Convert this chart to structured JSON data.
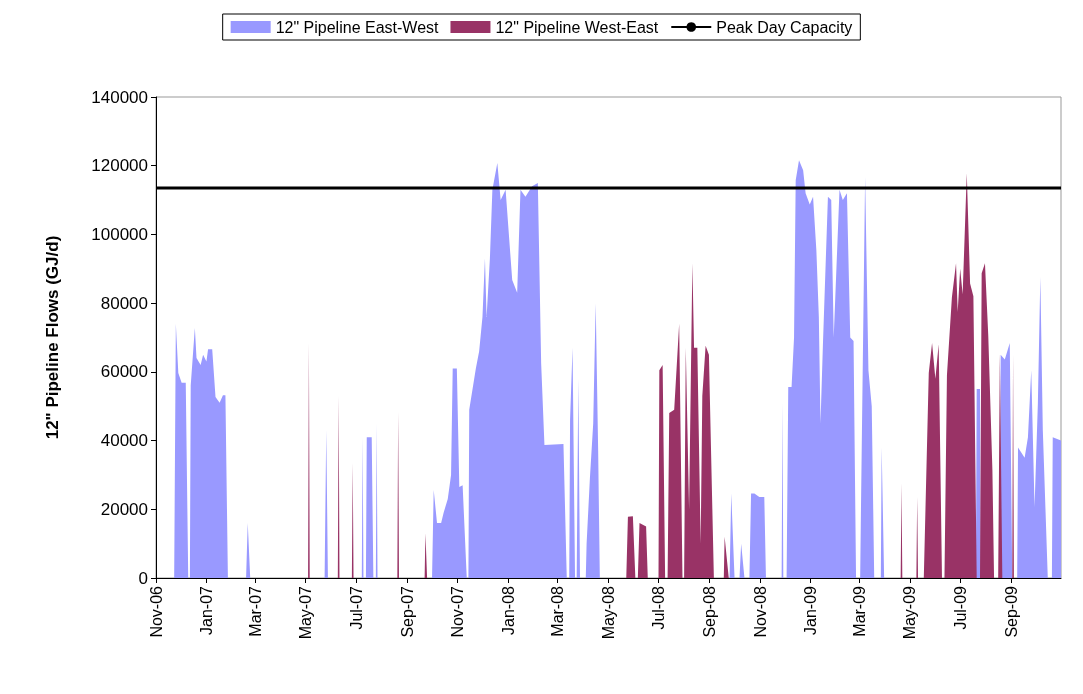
{
  "chart_data": {
    "type": "area",
    "ylabel": "12\" Pipeline Flows (GJ/d)",
    "legend": "top",
    "grid": false,
    "marker": "none",
    "xlim": [
      "2006-11-01",
      "2009-10-31"
    ],
    "xticks": [
      {
        "value": "2006-11-01",
        "label": "Nov-06"
      },
      {
        "value": "2007-01-01",
        "label": "Jan-07"
      },
      {
        "value": "2007-03-01",
        "label": "Mar-07"
      },
      {
        "value": "2007-05-01",
        "label": "May-07"
      },
      {
        "value": "2007-07-01",
        "label": "Jul-07"
      },
      {
        "value": "2007-09-01",
        "label": "Sep-07"
      },
      {
        "value": "2007-11-01",
        "label": "Nov-07"
      },
      {
        "value": "2008-01-01",
        "label": "Jan-08"
      },
      {
        "value": "2008-03-01",
        "label": "Mar-08"
      },
      {
        "value": "2008-05-01",
        "label": "May-08"
      },
      {
        "value": "2008-07-01",
        "label": "Jul-08"
      },
      {
        "value": "2008-09-01",
        "label": "Sep-08"
      },
      {
        "value": "2008-11-01",
        "label": "Nov-08"
      },
      {
        "value": "2009-01-01",
        "label": "Jan-09"
      },
      {
        "value": "2009-03-01",
        "label": "Mar-09"
      },
      {
        "value": "2009-05-01",
        "label": "May-09"
      },
      {
        "value": "2009-07-01",
        "label": "Jul-09"
      },
      {
        "value": "2009-09-01",
        "label": "Sep-09"
      }
    ],
    "ylim": [
      0,
      140000
    ],
    "yticks": [
      0,
      20000,
      40000,
      60000,
      80000,
      100000,
      120000,
      140000
    ],
    "series": [
      {
        "name": "12\" Pipeline East-West",
        "color": "#9999ff",
        "x": [
          "2006-11-01",
          "2006-11-23",
          "2006-11-25",
          "2006-11-28",
          "2006-12-02",
          "2006-12-07",
          "2006-12-10",
          "2006-12-12",
          "2006-12-13",
          "2006-12-18",
          "2006-12-20",
          "2006-12-25",
          "2006-12-28",
          "2007-01-01",
          "2007-01-03",
          "2007-01-08",
          "2007-01-12",
          "2007-01-17",
          "2007-01-21",
          "2007-01-24",
          "2007-01-27",
          "2007-02-18",
          "2007-02-20",
          "2007-02-23",
          "2007-05-24",
          "2007-05-26",
          "2007-05-28",
          "2007-07-08",
          "2007-07-09",
          "2007-07-10",
          "2007-07-13",
          "2007-07-14",
          "2007-07-20",
          "2007-07-22",
          "2007-07-25",
          "2007-07-26",
          "2007-07-27",
          "2007-10-01",
          "2007-10-03",
          "2007-10-07",
          "2007-10-12",
          "2007-10-15",
          "2007-10-20",
          "2007-10-24",
          "2007-10-26",
          "2007-10-31",
          "2007-11-03",
          "2007-11-07",
          "2007-11-12",
          "2007-11-14",
          "2007-11-15",
          "2007-11-23",
          "2007-11-27",
          "2007-12-01",
          "2007-12-04",
          "2007-12-06",
          "2007-12-10",
          "2007-12-13",
          "2007-12-19",
          "2007-12-23",
          "2007-12-29",
          "2008-01-06",
          "2008-01-12",
          "2008-01-16",
          "2008-01-22",
          "2008-01-30",
          "2008-02-06",
          "2008-02-10",
          "2008-02-14",
          "2008-03-08",
          "2008-03-12",
          "2008-03-15",
          "2008-03-16",
          "2008-03-19",
          "2008-03-22",
          "2008-03-24",
          "2008-03-26",
          "2008-03-28",
          "2008-04-04",
          "2008-04-05",
          "2008-04-09",
          "2008-04-13",
          "2008-04-16",
          "2008-04-19",
          "2008-04-21",
          "2008-09-25",
          "2008-09-27",
          "2008-10-01",
          "2008-10-07",
          "2008-10-09",
          "2008-10-13",
          "2008-10-19",
          "2008-10-21",
          "2008-10-25",
          "2008-10-31",
          "2008-11-06",
          "2008-11-08",
          "2008-11-27",
          "2008-11-28",
          "2008-11-29",
          "2008-12-03",
          "2008-12-05",
          "2008-12-09",
          "2008-12-12",
          "2008-12-14",
          "2008-12-18",
          "2008-12-23",
          "2008-12-26",
          "2008-12-31",
          "2009-01-04",
          "2009-01-08",
          "2009-01-11",
          "2009-01-13",
          "2009-01-16",
          "2009-01-22",
          "2009-01-26",
          "2009-01-29",
          "2009-02-05",
          "2009-02-09",
          "2009-02-14",
          "2009-02-18",
          "2009-02-22",
          "2009-02-25",
          "2009-03-02",
          "2009-03-03",
          "2009-03-08",
          "2009-03-12",
          "2009-03-16",
          "2009-03-19",
          "2009-03-27",
          "2009-03-28",
          "2009-03-31",
          "2009-07-20",
          "2009-07-21",
          "2009-07-25",
          "2009-07-26",
          "2009-08-18",
          "2009-08-19",
          "2009-08-24",
          "2009-08-30",
          "2009-09-02",
          "2009-09-08",
          "2009-09-09",
          "2009-09-17",
          "2009-09-21",
          "2009-09-25",
          "2009-09-29",
          "2009-10-03",
          "2009-10-06",
          "2009-10-09",
          "2009-10-15",
          "2009-10-20",
          "2009-10-21",
          "2009-10-31"
        ],
        "values": [
          0,
          0,
          74000,
          59700,
          56800,
          56800,
          0,
          0,
          56000,
          72800,
          64000,
          62000,
          65000,
          63000,
          66600,
          66600,
          52700,
          51000,
          53200,
          53200,
          0,
          0,
          16000,
          0,
          0,
          43000,
          0,
          0,
          41000,
          0,
          0,
          41000,
          41000,
          0,
          0,
          45000,
          0,
          0,
          25600,
          16000,
          16000,
          19000,
          23000,
          30000,
          61000,
          61000,
          26500,
          27000,
          0,
          0,
          49000,
          61000,
          66000,
          76000,
          93000,
          76000,
          93000,
          113000,
          120800,
          110000,
          113000,
          86700,
          83000,
          113000,
          111000,
          114000,
          115000,
          62600,
          38700,
          39000,
          0,
          0,
          46000,
          67000,
          0,
          0,
          58000,
          0,
          0,
          10000,
          29000,
          45000,
          80000,
          37000,
          0,
          0,
          24600,
          0,
          0,
          10000,
          0,
          0,
          24600,
          24600,
          23600,
          23600,
          0,
          0,
          51000,
          0,
          0,
          55600,
          55600,
          70000,
          115800,
          121600,
          118700,
          112000,
          108700,
          111000,
          95400,
          76000,
          45000,
          68400,
          111000,
          110000,
          70000,
          113000,
          110000,
          112000,
          70000,
          69000,
          0,
          0,
          20700,
          116700,
          60500,
          50000,
          0,
          0,
          38000,
          0,
          0,
          55000,
          55000,
          0,
          0,
          65000,
          63600,
          68400,
          0,
          0,
          38000,
          35000,
          41000,
          60500,
          20700,
          50700,
          87600,
          43000,
          0,
          0,
          41000,
          40000
        ]
      },
      {
        "name": "12\" Pipeline West-East",
        "color": "#993366",
        "x": [
          "2006-11-01",
          "2007-05-04",
          "2007-05-05",
          "2007-05-06",
          "2007-06-09",
          "2007-06-10",
          "2007-06-11",
          "2007-06-26",
          "2007-06-27",
          "2007-06-28",
          "2007-08-20",
          "2007-08-21",
          "2007-08-22",
          "2007-09-22",
          "2007-09-23",
          "2007-09-25",
          "2008-05-23",
          "2008-05-25",
          "2008-05-31",
          "2008-06-03",
          "2008-06-06",
          "2008-06-08",
          "2008-06-16",
          "2008-06-18",
          "2008-07-01",
          "2008-07-02",
          "2008-07-06",
          "2008-07-09",
          "2008-07-12",
          "2008-07-14",
          "2008-07-20",
          "2008-07-26",
          "2008-07-30",
          "2008-08-01",
          "2008-08-03",
          "2008-08-07",
          "2008-08-11",
          "2008-08-13",
          "2008-08-17",
          "2008-08-21",
          "2008-08-23",
          "2008-08-27",
          "2008-08-31",
          "2008-09-06",
          "2008-09-18",
          "2008-09-19",
          "2008-09-24",
          "2009-04-20",
          "2009-04-21",
          "2009-04-22",
          "2009-05-09",
          "2009-05-10",
          "2009-05-11",
          "2009-05-18",
          "2009-05-24",
          "2009-05-28",
          "2009-06-01",
          "2009-06-05",
          "2009-06-09",
          "2009-06-12",
          "2009-06-15",
          "2009-06-21",
          "2009-06-26",
          "2009-06-28",
          "2009-07-01",
          "2009-07-04",
          "2009-07-09",
          "2009-07-13",
          "2009-07-17",
          "2009-07-21",
          "2009-07-25",
          "2009-07-27",
          "2009-07-31",
          "2009-08-04",
          "2009-08-09",
          "2009-08-11",
          "2009-08-16",
          "2009-08-18",
          "2009-08-21",
          "2009-09-02",
          "2009-09-03",
          "2009-09-04",
          "2009-10-31"
        ],
        "values": [
          0,
          0,
          68400,
          0,
          0,
          53000,
          0,
          0,
          33500,
          0,
          0,
          48300,
          0,
          0,
          13000,
          0,
          0,
          17800,
          18000,
          0,
          0,
          16000,
          15000,
          0,
          0,
          60500,
          62000,
          0,
          0,
          48000,
          49000,
          74000,
          0,
          0,
          67000,
          20000,
          91600,
          67000,
          67000,
          10000,
          53000,
          67600,
          65000,
          0,
          0,
          12000,
          0,
          0,
          27600,
          0,
          0,
          23600,
          0,
          0,
          59700,
          68400,
          58000,
          68000,
          0,
          0,
          59000,
          81700,
          91600,
          77500,
          90000,
          82600,
          117800,
          85700,
          82000,
          0,
          0,
          88700,
          91600,
          70600,
          31400,
          0,
          0,
          65400,
          0,
          0,
          65000,
          0,
          0
        ]
      },
      {
        "name": "Peak Day Capacity",
        "type": "line",
        "color": "#000000",
        "x": [
          "2006-11-01",
          "2009-10-31"
        ],
        "values": [
          113500,
          113500
        ]
      }
    ]
  }
}
